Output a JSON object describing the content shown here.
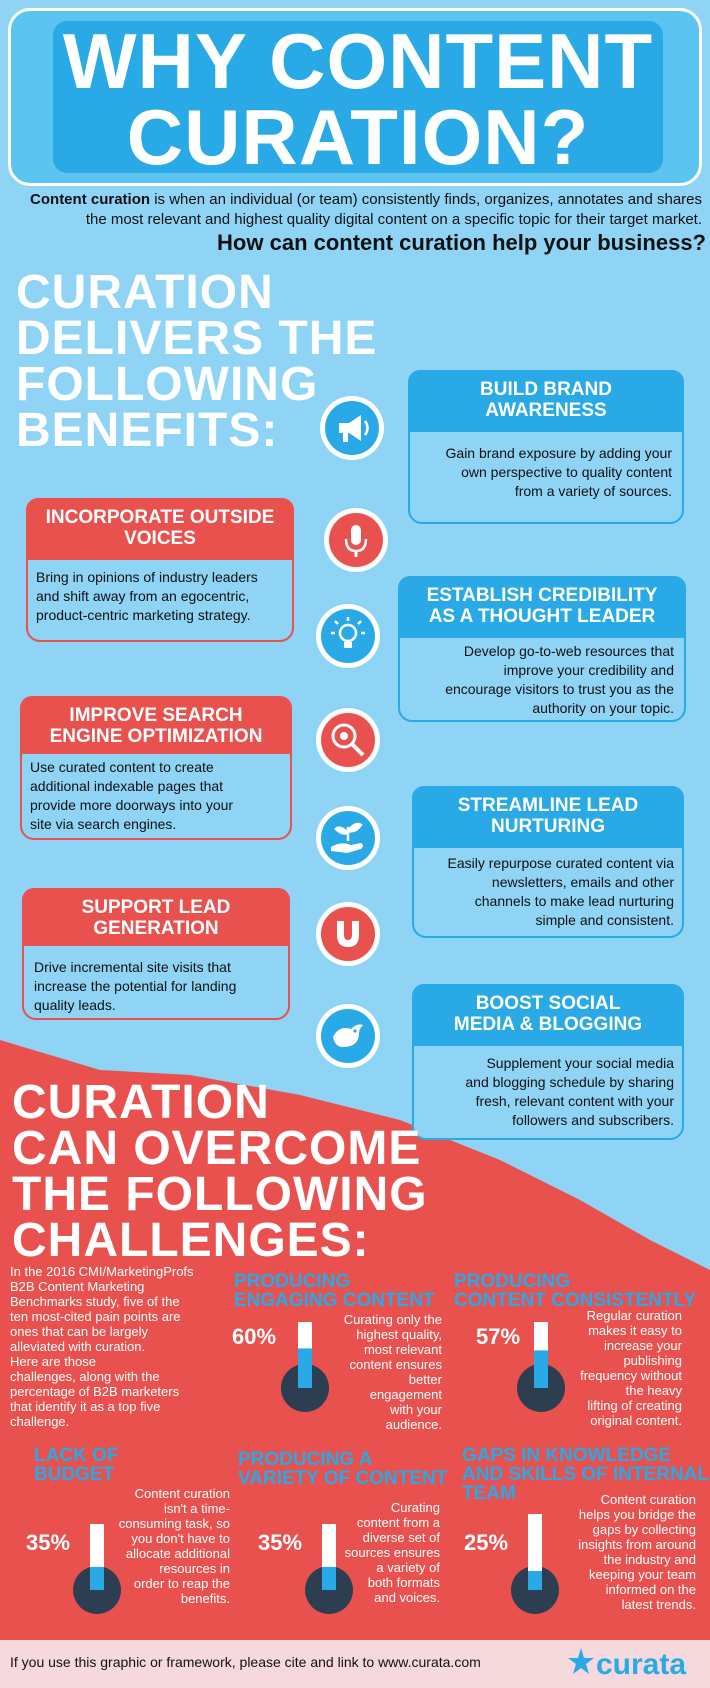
{
  "title": {
    "line1": "WHY CONTENT",
    "line2": "CURATION?"
  },
  "intro": {
    "bold": "Content curation",
    "rest_line1": " is when an individual (or team) consistently finds, organizes, annotates and shares",
    "line2": "the most relevant and highest quality digital content on a specific topic for their target market.",
    "question": "How can content curation help your business?"
  },
  "benefits_heading": [
    "CURATION",
    "DELIVERS THE",
    "FOLLOWING",
    "BENEFITS:"
  ],
  "benefits": [
    {
      "title": [
        "BUILD BRAND",
        "AWARENESS"
      ],
      "text": [
        "Gain brand exposure by adding your",
        "own perspective to quality content",
        "from a variety of sources."
      ],
      "icon": "megaphone-icon"
    },
    {
      "title": [
        "INCORPORATE OUTSIDE",
        "VOICES"
      ],
      "text": [
        "Bring in opinions of industry leaders",
        "and shift away from an egocentric,",
        "product-centric marketing strategy."
      ],
      "icon": "microphone-icon"
    },
    {
      "title": [
        "ESTABLISH CREDIBILITY",
        "AS A THOUGHT LEADER"
      ],
      "text": [
        "Develop go-to-web resources that",
        "improve your credibility and",
        "encourage visitors to trust you as the",
        "authority on your topic."
      ],
      "icon": "lightbulb-icon"
    },
    {
      "title": [
        "IMPROVE SEARCH",
        "ENGINE OPTIMIZATION"
      ],
      "text": [
        "Use curated content to create",
        "additional indexable pages that",
        "provide more doorways into your",
        "site via search engines."
      ],
      "icon": "magnifier-gears-icon"
    },
    {
      "title": [
        "STREAMLINE LEAD",
        "NURTURING"
      ],
      "text": [
        "Easily repurpose curated content via",
        "newsletters, emails and other",
        "channels to make lead nurturing",
        "simple and consistent."
      ],
      "icon": "hand-plant-icon"
    },
    {
      "title": [
        "SUPPORT LEAD",
        "GENERATION"
      ],
      "text": [
        "Drive incremental site visits that",
        "increase the potential for landing",
        "quality leads."
      ],
      "icon": "magnet-icon"
    },
    {
      "title": [
        "BOOST SOCIAL",
        "MEDIA & BLOGGING"
      ],
      "text": [
        "Supplement your social media",
        "and blogging schedule by sharing",
        "fresh, relevant content with your",
        "followers and subscribers."
      ],
      "icon": "bird-icon"
    }
  ],
  "challenges_heading": [
    "CURATION",
    "CAN OVERCOME",
    "THE FOLLOWING",
    "CHALLENGES:"
  ],
  "challenges_intro": [
    "In the 2016 CMI/MarketingProfs",
    "B2B Content Marketing",
    "Benchmarks study, five of the",
    "ten most-cited pain points are",
    "ones that can be largely",
    "alleviated with curation.",
    "Here are those",
    "challenges, along with the",
    "percentage of B2B marketers",
    "that identify it as a top five",
    "challenge."
  ],
  "challenges": [
    {
      "title": [
        "PRODUCING",
        "ENGAGING CONTENT"
      ],
      "pct_label": "60%",
      "pct": 60,
      "text": [
        "Curating only the",
        "highest quality,",
        "most relevant",
        "content ensures",
        "better",
        "engagement",
        "with your",
        "audience."
      ]
    },
    {
      "title": [
        "PRODUCING",
        "CONTENT CONSISTENTLY"
      ],
      "pct_label": "57%",
      "pct": 57,
      "text": [
        "Regular curation",
        "makes it easy to",
        "increase your",
        "publishing",
        "frequency without",
        "the heavy",
        "lifting of creating",
        "original content."
      ]
    },
    {
      "title": [
        "LACK OF",
        "BUDGET"
      ],
      "pct_label": "35%",
      "pct": 35,
      "text": [
        "Content curation",
        "isn't a time-",
        "consuming task, so",
        "you don't have to",
        "allocate additional",
        "resources in",
        "order to reap the",
        "benefits."
      ]
    },
    {
      "title": [
        "PRODUCING A",
        "VARIETY OF CONTENT"
      ],
      "pct_label": "35%",
      "pct": 35,
      "text": [
        "Curating",
        "content from a",
        "diverse set of",
        "sources ensures",
        "a variety of",
        "both formats",
        "and voices."
      ]
    },
    {
      "title": [
        "GAPS IN KNOWLEDGE",
        "AND SKILLS OF INTERNAL",
        "TEAM"
      ],
      "pct_label": "25%",
      "pct": 25,
      "text": [
        "Content curation",
        "helps you bridge the",
        "gaps by collecting",
        "insights from around",
        "the industry and",
        "keeping your team",
        "informed on the",
        "latest trends."
      ]
    }
  ],
  "footer": {
    "text": "If you use this graphic or framework, please cite and link to www.curata.com",
    "logo": "curata"
  },
  "colors": {
    "blue": "#29a9e6",
    "light_blue": "#8fd3f5",
    "red": "#e9514f",
    "navy": "#2c3e50"
  }
}
